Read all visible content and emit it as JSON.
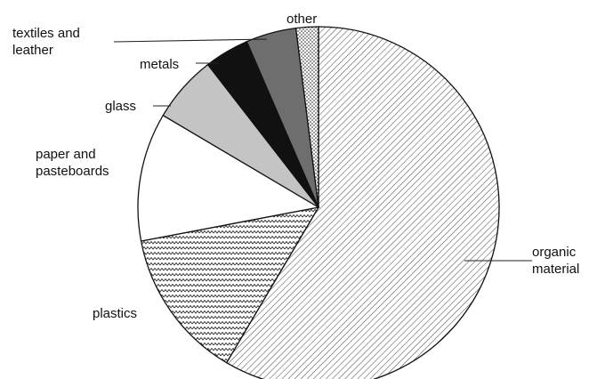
{
  "chart_data": {
    "type": "pie",
    "title": "",
    "start_angle_deg": 0,
    "direction": "clockwise",
    "slices": [
      {
        "name": "organic material",
        "label_lines": [
          "organic",
          "material"
        ],
        "value": 58.5,
        "fill": "diag-hatch"
      },
      {
        "name": "plastics",
        "label_lines": [
          "plastics"
        ],
        "value": 13.5,
        "fill": "zigzag-pattern"
      },
      {
        "name": "paper and pasteboards",
        "label_lines": [
          "paper and",
          "pasteboards"
        ],
        "value": 11.5,
        "fill": "#ffffff"
      },
      {
        "name": "glass",
        "label_lines": [
          "glass"
        ],
        "value": 6.0,
        "fill": "#c4c4c4"
      },
      {
        "name": "metals",
        "label_lines": [
          "metals"
        ],
        "value": 4.0,
        "fill": "#111111"
      },
      {
        "name": "textiles and leather",
        "label_lines": [
          "textiles and",
          "leather"
        ],
        "value": 4.5,
        "fill": "#6e6e6e"
      },
      {
        "name": "other",
        "label_lines": [
          "other"
        ],
        "value": 2.0,
        "fill": "dot-pattern"
      }
    ]
  }
}
